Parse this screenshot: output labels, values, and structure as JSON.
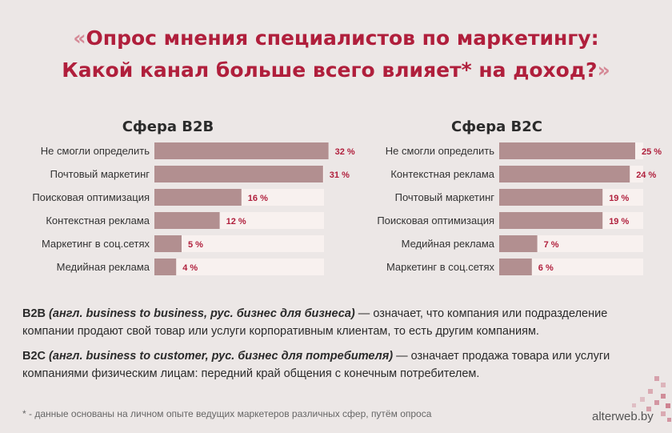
{
  "title": {
    "open_quote": "«",
    "line1": "Опрос мнения специалистов по маркетингу:",
    "line2": "Какой канал больше всего влияет* на доход?",
    "close_quote": "»"
  },
  "chart_data": [
    {
      "type": "bar",
      "orientation": "horizontal",
      "title": "Сфера B2B",
      "categories": [
        "Не смогли определить",
        "Почтовый маркетинг",
        "Поисковая оптимизация",
        "Контекстная реклама",
        "Маркетинг в соц.сетях",
        "Медийная реклама"
      ],
      "values": [
        32,
        31,
        16,
        12,
        5,
        4
      ],
      "value_labels": [
        "32 %",
        "31 %",
        "16 %",
        "12 %",
        "5 %",
        "4 %"
      ],
      "xlim": [
        0,
        40
      ],
      "bar_color": "#b28f90",
      "label_color": "#b01f3c"
    },
    {
      "type": "bar",
      "orientation": "horizontal",
      "title": "Сфера B2C",
      "categories": [
        "Не смогли определить",
        "Контекстная реклама",
        "Почтовый маркетинг",
        "Поисковая оптимизация",
        "Медийная реклама",
        "Маркетинг в соц.сетях"
      ],
      "values": [
        25,
        24,
        19,
        19,
        7,
        6
      ],
      "value_labels": [
        "25 %",
        "24 %",
        "19 %",
        "19 %",
        "7 %",
        "6 %"
      ],
      "xlim": [
        0,
        40
      ],
      "bar_color": "#b28f90",
      "label_color": "#b01f3c"
    }
  ],
  "definitions": {
    "b2b_term": "B2B",
    "b2b_paren": "(англ. business to business, рус. бизнес для бизнеса)",
    "b2b_text": " — означает, что компания или подразделение компании продают свой товар или услуги корпоративным клиентам, то есть другим компаниям.",
    "b2c_term": "B2C",
    "b2c_paren": "(англ. business to customer, рус. бизнес для потребителя)",
    "b2c_text": " — означает продажа товара или услуги компаниями физическим лицам: передний край общения с конечным потребителем."
  },
  "footnote": "* - данные основаны на личном опыте ведущих маркетеров различных сфер, путём опроса",
  "brand": "alterweb.by",
  "colors": {
    "accent": "#b01f3c",
    "background": "#ece7e6",
    "bar": "#b28f90"
  }
}
